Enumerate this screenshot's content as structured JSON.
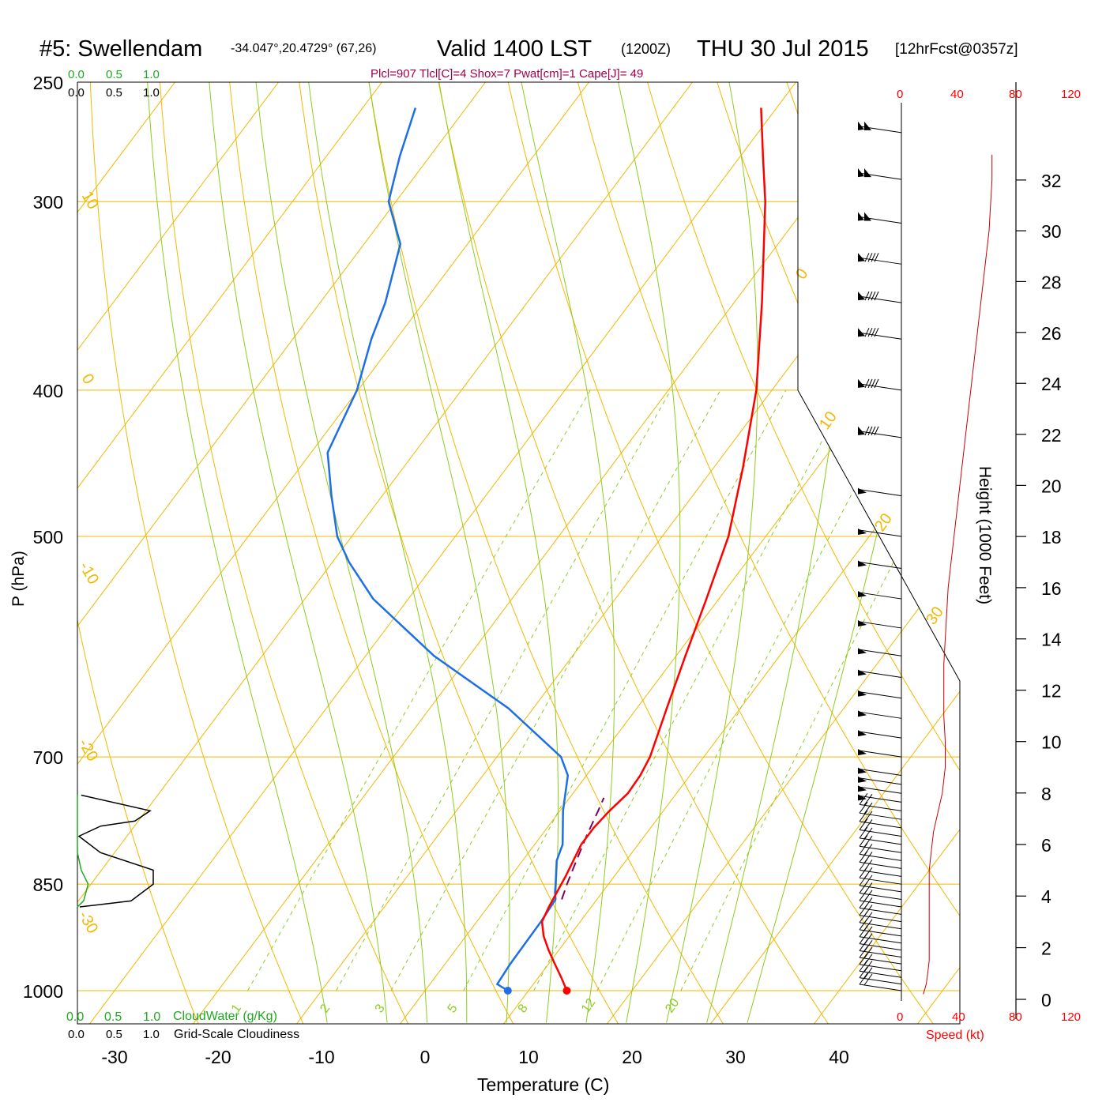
{
  "header": {
    "station": "#5: Swellendam",
    "coords": "-34.047°,20.4729° (67,26)",
    "valid": "Valid 1400 LST",
    "utc": "(1200Z)",
    "date": "THU 30 Jul 2015",
    "forecast": "[12hrFcst@0357z]",
    "indices": "Plcl=907 Tlcl[C]=4 Shox=7 Pwat[cm]=1 Cape[J]= 49"
  },
  "colors": {
    "temperature": "#ff0000",
    "dewpoint": "#1e6fe6",
    "isotherm": "#f2b800",
    "dry_adiabat": "#f2b800",
    "moist_adiabat": "#8ccd1e",
    "mixing_ratio": "#8ccd1e",
    "parcel": "#800060",
    "cloudwater": "#1eaa1e",
    "cloudiness": "#000000",
    "wind_speed": "#ff0000",
    "indices_text": "#a0004a"
  },
  "cloud_panel": {
    "top_green": [
      "0.0",
      "0.5",
      "1.0"
    ],
    "top_black": [
      "0.0",
      "0.5",
      "1.0"
    ],
    "bottom_green": [
      "0.0",
      "0.5",
      "1.0"
    ],
    "bottom_black": [
      "0.0",
      "0.5",
      "1.0"
    ],
    "cloudwater_label": "CloudWater (g/Kg)",
    "cloudiness_label": "Grid-Scale Cloudiness"
  },
  "wind_panel": {
    "top_ticks": [
      "0",
      "40",
      "80",
      "120"
    ],
    "bottom_ticks": [
      "0",
      "40",
      "80",
      "120"
    ],
    "speed_label": "Speed (kt)",
    "height_label": "Height (1000 Feet)",
    "height_ticks": [
      "0",
      "2",
      "4",
      "6",
      "8",
      "10",
      "12",
      "14",
      "16",
      "18",
      "20",
      "22",
      "24",
      "26",
      "28",
      "30",
      "32"
    ]
  },
  "chart_data": {
    "type": "skew-t",
    "xlabel": "Temperature (C)",
    "ylabel": "P (hPa)",
    "x_ticks": [
      -30,
      -20,
      -10,
      0,
      10,
      20,
      30,
      40
    ],
    "pressure_levels": [
      250,
      300,
      400,
      500,
      700,
      850,
      1000
    ],
    "pressure_labels": [
      "250",
      "300",
      "400",
      "500",
      "700",
      "850",
      "1000"
    ],
    "dry_adiabat_labels": [
      "10",
      "0",
      "-10",
      "-20",
      "-30",
      "0",
      "10",
      "20",
      "30"
    ],
    "mixing_ratio_labels": [
      "1",
      "2",
      "3",
      "5",
      "8",
      "12",
      "20"
    ],
    "series": [
      {
        "name": "Temperature",
        "pressure": [
          1000,
          980,
          960,
          940,
          920,
          900,
          880,
          860,
          840,
          820,
          800,
          780,
          760,
          740,
          720,
          700,
          650,
          600,
          550,
          500,
          450,
          400,
          350,
          300,
          280,
          260
        ],
        "temp_c": [
          13.7,
          12.2,
          10.6,
          9.0,
          7.5,
          6.3,
          5.9,
          5.6,
          5.3,
          4.9,
          4.5,
          4.5,
          4.8,
          5.3,
          5.2,
          4.8,
          2.9,
          0.9,
          -1.2,
          -3.6,
          -7.2,
          -11.5,
          -17.3,
          -24.3,
          -27.8,
          -31.5
        ]
      },
      {
        "name": "Dewpoint",
        "pressure": [
          1000,
          990,
          960,
          900,
          870,
          860,
          850,
          820,
          800,
          760,
          720,
          700,
          650,
          600,
          550,
          520,
          500,
          470,
          440,
          400,
          370,
          350,
          320,
          300,
          280,
          260
        ],
        "dewpoint_c": [
          8.0,
          6.5,
          6.3,
          6.2,
          6.0,
          5.4,
          4.9,
          3.3,
          2.7,
          0.3,
          -1.8,
          -3.8,
          -12.4,
          -23.4,
          -33.4,
          -38.4,
          -41.4,
          -44.9,
          -48.4,
          -50.1,
          -52.4,
          -53.7,
          -56.5,
          -60.7,
          -62.9,
          -64.9
        ]
      }
    ],
    "surface_temp_c": 13.7,
    "surface_dewpoint_c": 8.0,
    "parcel": {
      "pressure": [
        870,
        850,
        820,
        790,
        760,
        745
      ],
      "temp_c": [
        6.6,
        6.0,
        5.2,
        4.4,
        3.7,
        3.3
      ]
    },
    "wind_profile": {
      "height_kft": [
        0.2,
        0.6,
        1.0,
        1.5,
        2.0,
        2.5,
        3.0,
        3.5,
        4.0,
        4.5,
        5.0,
        5.5,
        6.0,
        6.5,
        7.0,
        7.5,
        8.0,
        9.0,
        10.0,
        11.0,
        12.0,
        13.0,
        14.0,
        16.0,
        18.0,
        20.0,
        22.0,
        24.0,
        26.0,
        28.0,
        30.0,
        31.0,
        32.0,
        33.0
      ],
      "speed_kt": [
        15,
        17,
        18,
        19,
        19,
        19,
        19,
        19,
        19,
        19,
        19,
        20,
        21,
        22,
        24,
        26,
        28,
        30,
        30,
        29,
        29,
        29,
        30,
        32,
        36,
        40,
        44,
        48,
        52,
        56,
        60,
        61,
        62,
        62
      ]
    },
    "cloud_profile": {
      "pressure": [
        742,
        760,
        772,
        778,
        790,
        810,
        832,
        850,
        872,
        880
      ],
      "cloudiness": [
        0.05,
        0.95,
        0.75,
        0.3,
        0.02,
        0.3,
        0.99,
        0.99,
        0.7,
        0.03
      ],
      "cloudwater": [
        0.0,
        0.0,
        0.0,
        0.0,
        0.0,
        0.0,
        0.05,
        0.14,
        0.08,
        0.0
      ]
    }
  }
}
